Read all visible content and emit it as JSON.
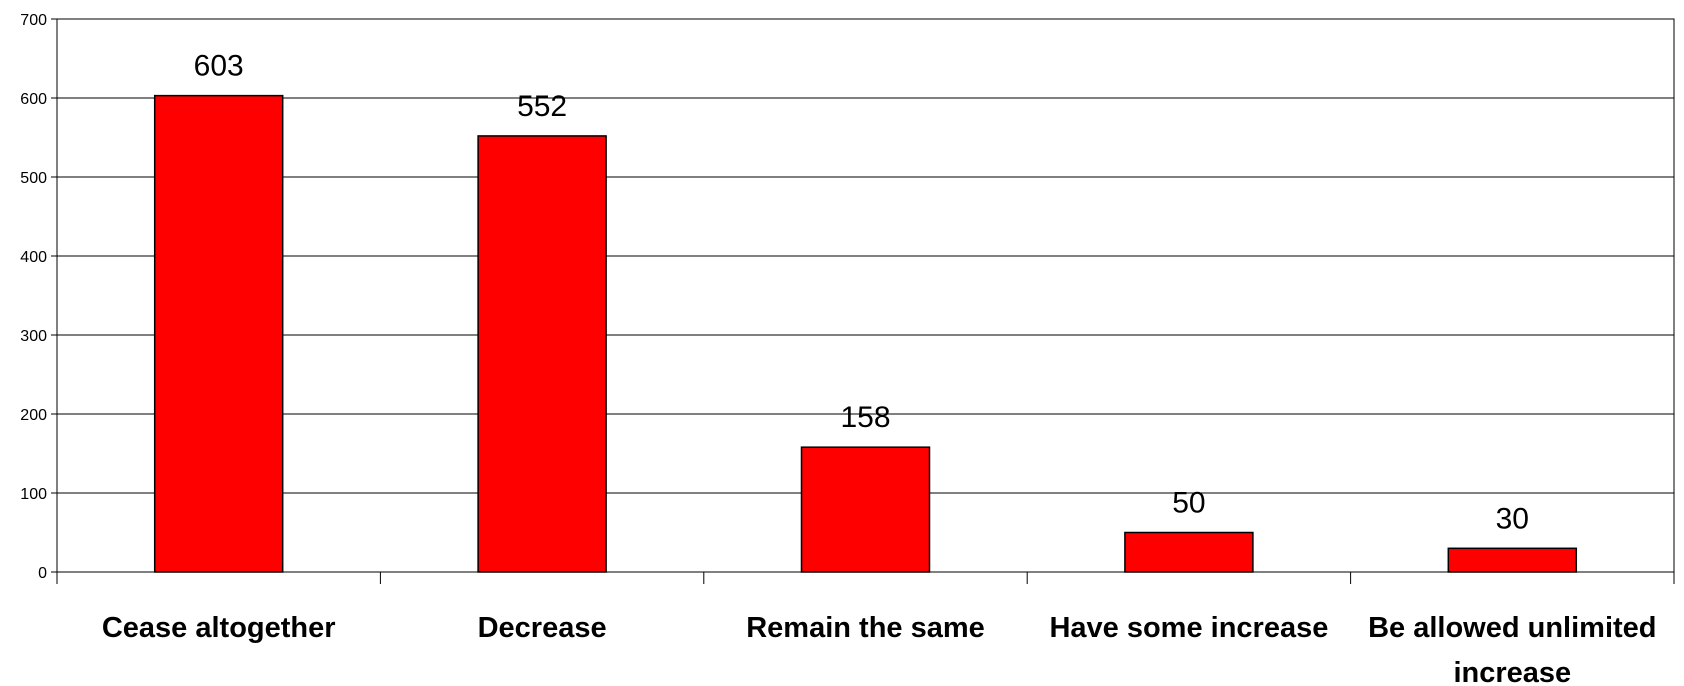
{
  "chart_data": {
    "type": "bar",
    "categories": [
      [
        "Cease altogether"
      ],
      [
        "Decrease"
      ],
      [
        "Remain the same"
      ],
      [
        "Have some increase"
      ],
      [
        "Be allowed unlimited",
        "increase"
      ]
    ],
    "values": [
      603,
      552,
      158,
      50,
      30
    ],
    "data_labels": [
      "603",
      "552",
      "158",
      "50",
      "30"
    ],
    "yticks": [
      "0",
      "100",
      "200",
      "300",
      "400",
      "500",
      "600",
      "700"
    ],
    "ylim": [
      0,
      700
    ],
    "grid": true,
    "legend": "none",
    "bar_color": "#FF0000",
    "title": "",
    "xlabel": "",
    "ylabel": ""
  }
}
